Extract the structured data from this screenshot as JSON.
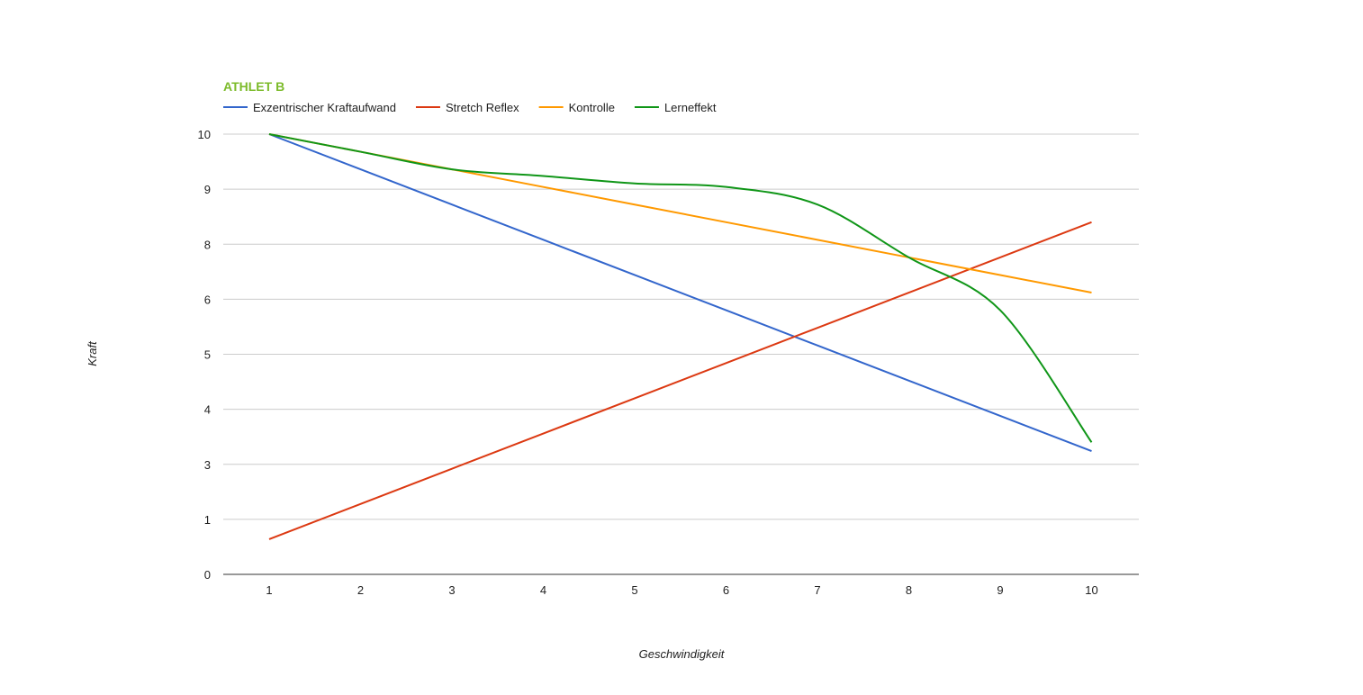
{
  "chart_data": {
    "type": "line",
    "title": "ATHLET B",
    "title_color": "#7cbb2a",
    "xlabel": "Geschwindigkeit",
    "ylabel": "Kraft",
    "x": [
      1,
      2,
      3,
      4,
      5,
      6,
      7,
      8,
      9,
      10
    ],
    "y_tick_labels": [
      "0",
      "1",
      "3",
      "4",
      "5",
      "6",
      "8",
      "9",
      "10"
    ],
    "legend_position": "top-left",
    "grid": true,
    "series": [
      {
        "name": "Exzentrischer Kraftaufwand",
        "color": "#3366cc",
        "values": [
          10,
          9.2,
          8.4,
          7.6,
          6.8,
          6.0,
          5.2,
          4.4,
          3.6,
          2.8
        ],
        "smooth": false
      },
      {
        "name": "Stretch Reflex",
        "color": "#dc3912",
        "values": [
          0.8,
          1.6,
          2.4,
          3.2,
          4.0,
          4.8,
          5.6,
          6.4,
          7.2,
          8.0
        ],
        "smooth": false
      },
      {
        "name": "Kontrolle",
        "color": "#ff9900",
        "values": [
          10,
          9.6,
          9.2,
          8.8,
          8.4,
          8.0,
          7.6,
          7.2,
          6.8,
          6.4
        ],
        "smooth": false
      },
      {
        "name": "Lerneffekt",
        "color": "#109618",
        "values": [
          10,
          9.6,
          9.2,
          9.05,
          8.88,
          8.8,
          8.4,
          7.2,
          6.0,
          3.0
        ],
        "smooth": true
      }
    ]
  }
}
